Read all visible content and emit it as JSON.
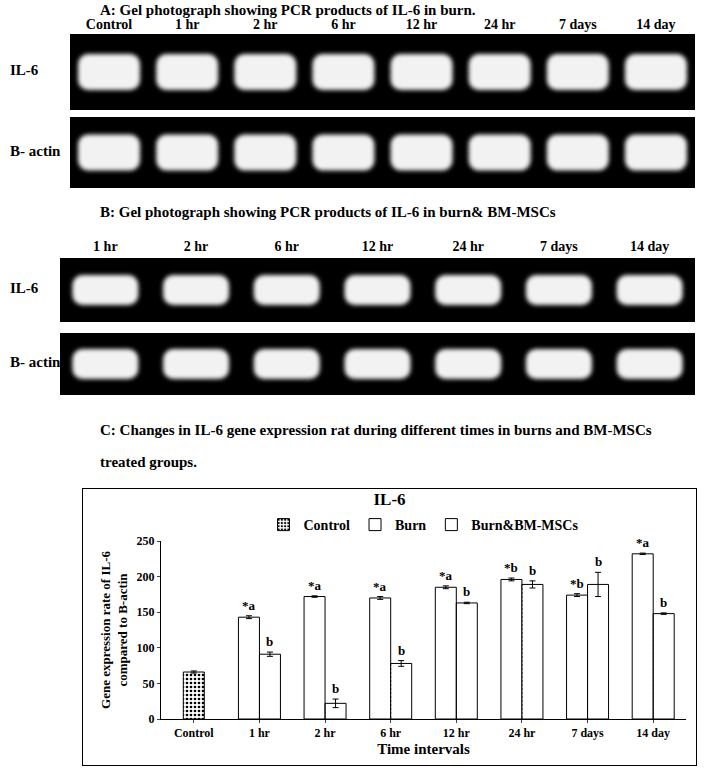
{
  "panels": [
    {
      "title": "A: Gel photograph showing PCR products of IL-6 in burn.",
      "lanes": [
        "Control",
        "1 hr",
        "2 hr",
        "6 hr",
        "12 hr",
        "24 hr",
        "7 days",
        "14 day"
      ],
      "rows": [
        "IL-6",
        "B- actin"
      ]
    },
    {
      "title": "B: Gel photograph showing PCR products of IL-6 in burn& BM-MSCs",
      "lanes": [
        "1 hr",
        "2 hr",
        "6 hr",
        "12 hr",
        "24 hr",
        "7 days",
        "14 day"
      ],
      "rows": [
        "IL-6",
        "B- actin"
      ]
    }
  ],
  "chart_caption": [
    "C: Changes in IL-6 gene expression rat during different times in burns and BM-MSCs",
    "treated groups."
  ],
  "chart_data": {
    "type": "bar",
    "title": "IL-6",
    "x_label": "Time intervals",
    "y_label": [
      "Gene expression rate of IL-6",
      "compared to B-actin"
    ],
    "categories": [
      "Control",
      "1 hr",
      "2 hr",
      "6 hr",
      "12 hr",
      "24 hr",
      "7 days",
      "14 day"
    ],
    "series": [
      {
        "name": "Control",
        "color": "#ffffff",
        "values": [
          66,
          null,
          null,
          null,
          null,
          null,
          null,
          null
        ],
        "errors": [
          1.5,
          null,
          null,
          null,
          null,
          null,
          null,
          null
        ],
        "annotations": [
          null,
          null,
          null,
          null,
          null,
          null,
          null,
          null
        ]
      },
      {
        "name": "Burn",
        "color": "#000000",
        "values": [
          null,
          143,
          172,
          170,
          185,
          196,
          174,
          232
        ],
        "errors": [
          null,
          2,
          1,
          2,
          2,
          2,
          2,
          1
        ],
        "annotations": [
          null,
          "*a",
          "*a",
          "*a",
          "*a",
          "*b",
          "*b",
          "*a"
        ]
      },
      {
        "name": "Burn&BM-MSCs",
        "color": "#9e9e9e",
        "values": [
          null,
          91,
          22,
          78,
          163,
          189,
          189,
          148
        ],
        "errors": [
          null,
          3,
          6,
          4,
          1,
          5,
          17,
          1
        ],
        "annotations": [
          null,
          "b",
          "b",
          "b",
          "b",
          "b",
          "b",
          "b"
        ]
      }
    ],
    "ylim": [
      0,
      250
    ],
    "yticks": [
      0,
      50,
      100,
      150,
      200,
      250
    ],
    "grid": false,
    "legend": "top",
    "data_labels": false
  }
}
